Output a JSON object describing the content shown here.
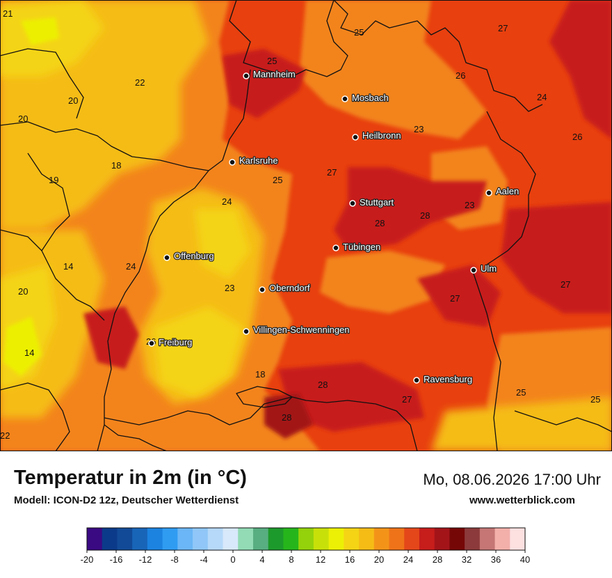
{
  "header": {
    "title": "Temperatur in 2m (in °C)",
    "model": "Modell: ICON-D2 12z, Deutscher Wetterdienst",
    "datetime": "Mo, 08.06.2026 17:00 Uhr",
    "source": "www.wetterblick.com"
  },
  "colors": {
    "background_field": "#e8400f",
    "accent_hot": "#c0161b",
    "accent_warm": "#f3841a",
    "accent_mild": "#f7c318",
    "border_line": "#111111"
  },
  "cities": [
    {
      "name": "Mannheim"
    },
    {
      "name": "Mosbach"
    },
    {
      "name": "Heilbronn"
    },
    {
      "name": "Karlsruhe"
    },
    {
      "name": "Aalen"
    },
    {
      "name": "Stuttgart"
    },
    {
      "name": "Offenburg"
    },
    {
      "name": "Tübingen"
    },
    {
      "name": "Ulm"
    },
    {
      "name": "Oberndorf"
    },
    {
      "name": "Villingen-Schwenningen"
    },
    {
      "name": "Freiburg"
    },
    {
      "name": "Ravensburg"
    }
  ],
  "temperature_labels": [
    "21",
    "25",
    "27",
    "22",
    "25",
    "20",
    "26",
    "24",
    "20",
    "23",
    "26",
    "18",
    "27",
    "25",
    "19",
    "24",
    "23",
    "28",
    "28",
    "14",
    "24",
    "20",
    "23",
    "27",
    "27",
    "14",
    "26",
    "18",
    "28",
    "27",
    "25",
    "25",
    "28",
    "22"
  ],
  "legend": {
    "ticks": [
      "-20",
      "-16",
      "-12",
      "-8",
      "-4",
      "0",
      "4",
      "8",
      "12",
      "16",
      "20",
      "24",
      "28",
      "32",
      "36",
      "40"
    ],
    "colors": [
      "#3a0a83",
      "#0b3a8a",
      "#124a97",
      "#1865b8",
      "#1c83e0",
      "#2f9cf2",
      "#6bb6f6",
      "#90c7f8",
      "#b6d9fa",
      "#d8e9fb",
      "#92dbb5",
      "#58ae80",
      "#1d9a2c",
      "#26b61c",
      "#94d20b",
      "#c8e00a",
      "#ecf005",
      "#f4d415",
      "#f5bc16",
      "#f39419",
      "#ef7419",
      "#e4471a",
      "#c71d1b",
      "#a31419",
      "#760707",
      "#8c3a3b",
      "#c57675",
      "#f3b0ab",
      "#fde0e0"
    ],
    "min": -20,
    "max": 40,
    "step": 2
  }
}
